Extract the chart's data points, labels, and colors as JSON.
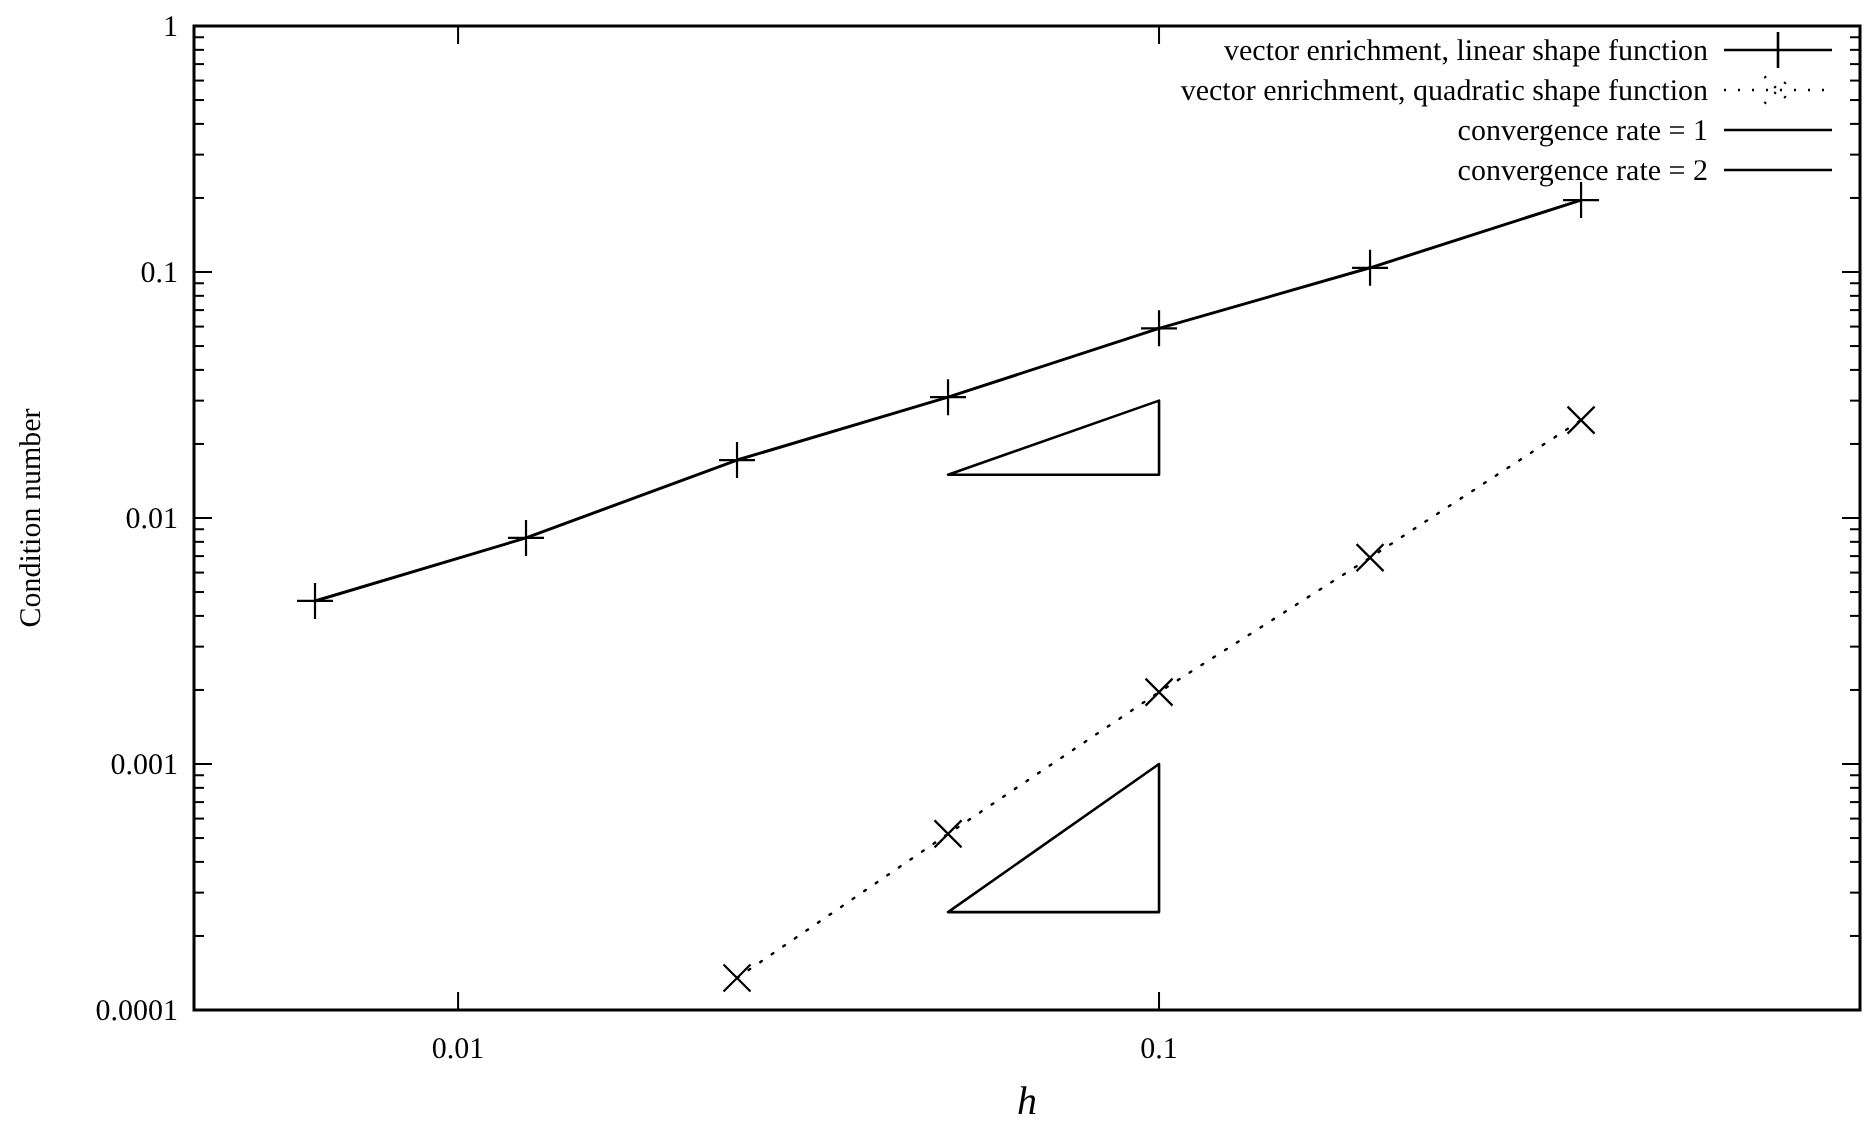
{
  "chart_data": {
    "type": "line",
    "xlabel": "h",
    "ylabel": "Condition number",
    "log": "xy",
    "grid": false,
    "legend": "top right",
    "xlim": [
      0.0042,
      1
    ],
    "xticks": [
      0.01,
      0.1
    ],
    "ylim": [
      0.0001,
      1
    ],
    "yticks": [
      0.0001,
      {
        "value": 0.0002,
        "label": null
      },
      {
        "value": 0.0003,
        "label": null
      },
      {
        "value": 0.0004,
        "label": null
      },
      {
        "value": 0.0005,
        "label": null
      },
      {
        "value": 0.0006,
        "label": null
      },
      {
        "value": 0.0007,
        "label": null
      },
      {
        "value": 0.0008,
        "label": null
      },
      {
        "value": 0.0009,
        "label": null
      },
      0.001,
      {
        "value": 0.002,
        "label": null
      },
      {
        "value": 0.003,
        "label": null
      },
      {
        "value": 0.004,
        "label": null
      },
      {
        "value": 0.005,
        "label": null
      },
      {
        "value": 0.006,
        "label": null
      },
      {
        "value": 0.007,
        "label": null
      },
      {
        "value": 0.008,
        "label": null
      },
      {
        "value": 0.009,
        "label": null
      },
      0.01,
      {
        "value": 0.02,
        "label": null
      },
      {
        "value": 0.03,
        "label": null
      },
      {
        "value": 0.04,
        "label": null
      },
      {
        "value": 0.05,
        "label": null
      },
      {
        "value": 0.06,
        "label": null
      },
      {
        "value": 0.07,
        "label": null
      },
      {
        "value": 0.08,
        "label": null
      },
      {
        "value": 0.09,
        "label": null
      },
      0.1,
      {
        "value": 0.2,
        "label": null
      },
      {
        "value": 0.3,
        "label": null
      },
      {
        "value": 0.4,
        "label": null
      },
      {
        "value": 0.5,
        "label": null
      },
      {
        "value": 0.6,
        "label": null
      },
      {
        "value": 0.7,
        "label": null
      },
      {
        "value": 0.8,
        "label": null
      },
      {
        "value": 0.9,
        "label": null
      },
      1
    ],
    "series": [
      {
        "name": "vector enrichment, linear shape function",
        "color": "#000000",
        "marker": "cross",
        "line_style": "solid",
        "x": [
          0.00625,
          0.0125,
          0.025,
          0.05,
          0.1,
          0.2,
          0.4
        ],
        "values": [
          0.0046,
          0.0083,
          0.0172,
          0.031,
          0.059,
          0.104,
          0.196
        ]
      },
      {
        "name": "vector enrichment, quadratic shape function",
        "color": "#000000",
        "marker": "x",
        "line_style": "dotted",
        "x": [
          0.025,
          0.05,
          0.1,
          0.2,
          0.4
        ],
        "values": [
          0.000135,
          0.00052,
          0.00196,
          0.0069,
          0.025
        ]
      }
    ],
    "annotations": [
      "convergence rate = 1",
      "convergence rate = 2"
    ]
  }
}
